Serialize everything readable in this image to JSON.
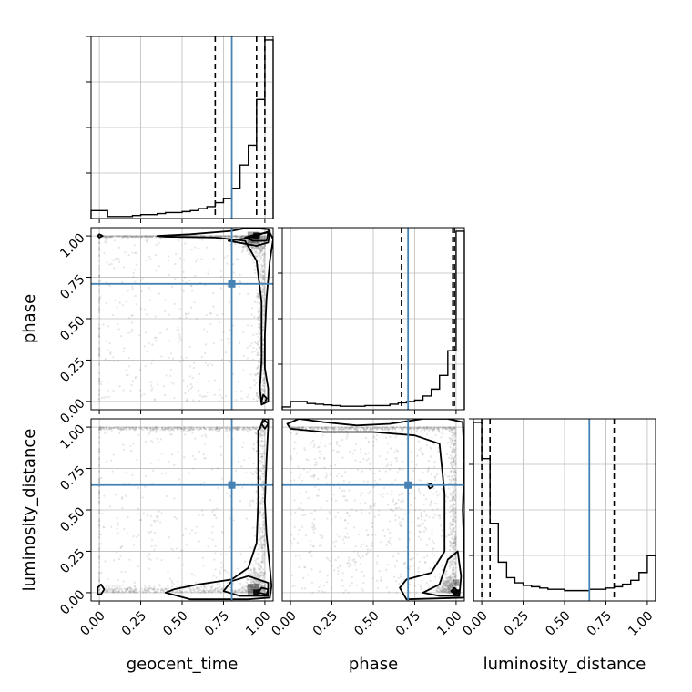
{
  "chart_data": {
    "type": "corner",
    "parameters": [
      "geocent_time",
      "phase",
      "luminosity_distance"
    ],
    "tick_labels": [
      "0.00",
      "0.25",
      "0.50",
      "0.75",
      "1.00"
    ],
    "axis_range": [
      -0.05,
      1.05
    ],
    "grid": true,
    "truth_color": "#4682b4",
    "truths": {
      "geocent_time": 0.8,
      "phase": 0.71,
      "luminosity_distance": 0.65
    },
    "quantiles": {
      "geocent_time": [
        0.7,
        0.95,
        1.0
      ],
      "phase": [
        0.67,
        0.98,
        0.99
      ],
      "luminosity_distance": [
        0.0,
        0.05,
        0.8
      ]
    },
    "histograms": {
      "geocent_time": {
        "edges": [
          -0.05,
          0.0,
          0.05,
          0.1,
          0.15,
          0.2,
          0.25,
          0.3,
          0.35,
          0.4,
          0.45,
          0.5,
          0.55,
          0.6,
          0.65,
          0.7,
          0.75,
          0.8,
          0.85,
          0.9,
          0.95,
          1.0,
          1.05
        ],
        "counts": [
          4,
          4,
          1,
          1,
          1,
          1.5,
          2,
          2,
          2.5,
          3,
          3,
          3.5,
          4,
          5,
          6,
          8,
          10,
          15,
          27,
          37,
          60,
          90
        ]
      },
      "phase": {
        "edges": [
          -0.05,
          0.0,
          0.05,
          0.1,
          0.15,
          0.2,
          0.25,
          0.3,
          0.35,
          0.4,
          0.45,
          0.5,
          0.55,
          0.6,
          0.65,
          0.7,
          0.75,
          0.8,
          0.85,
          0.9,
          0.95,
          1.0,
          1.05
        ],
        "counts": [
          2,
          6,
          6,
          4.5,
          4,
          3.5,
          3,
          2.5,
          2.5,
          2.5,
          3,
          3,
          3,
          4,
          5,
          6,
          7,
          10,
          15,
          25,
          43,
          130
        ]
      },
      "luminosity_distance": {
        "edges": [
          -0.05,
          0.0,
          0.05,
          0.1,
          0.15,
          0.2,
          0.25,
          0.3,
          0.35,
          0.4,
          0.45,
          0.5,
          0.55,
          0.6,
          0.65,
          0.7,
          0.75,
          0.8,
          0.85,
          0.9,
          0.95,
          1.0,
          1.05
        ],
        "counts": [
          138,
          110,
          60,
          30,
          18,
          14,
          12,
          11,
          10,
          9,
          9,
          8,
          8,
          8,
          9,
          9,
          10,
          11,
          13,
          16,
          22,
          35
        ]
      }
    },
    "density": [
      {
        "x": "geocent_time",
        "y": "phase"
      },
      {
        "x": "geocent_time",
        "y": "luminosity_distance"
      },
      {
        "x": "phase",
        "y": "luminosity_distance"
      }
    ]
  }
}
